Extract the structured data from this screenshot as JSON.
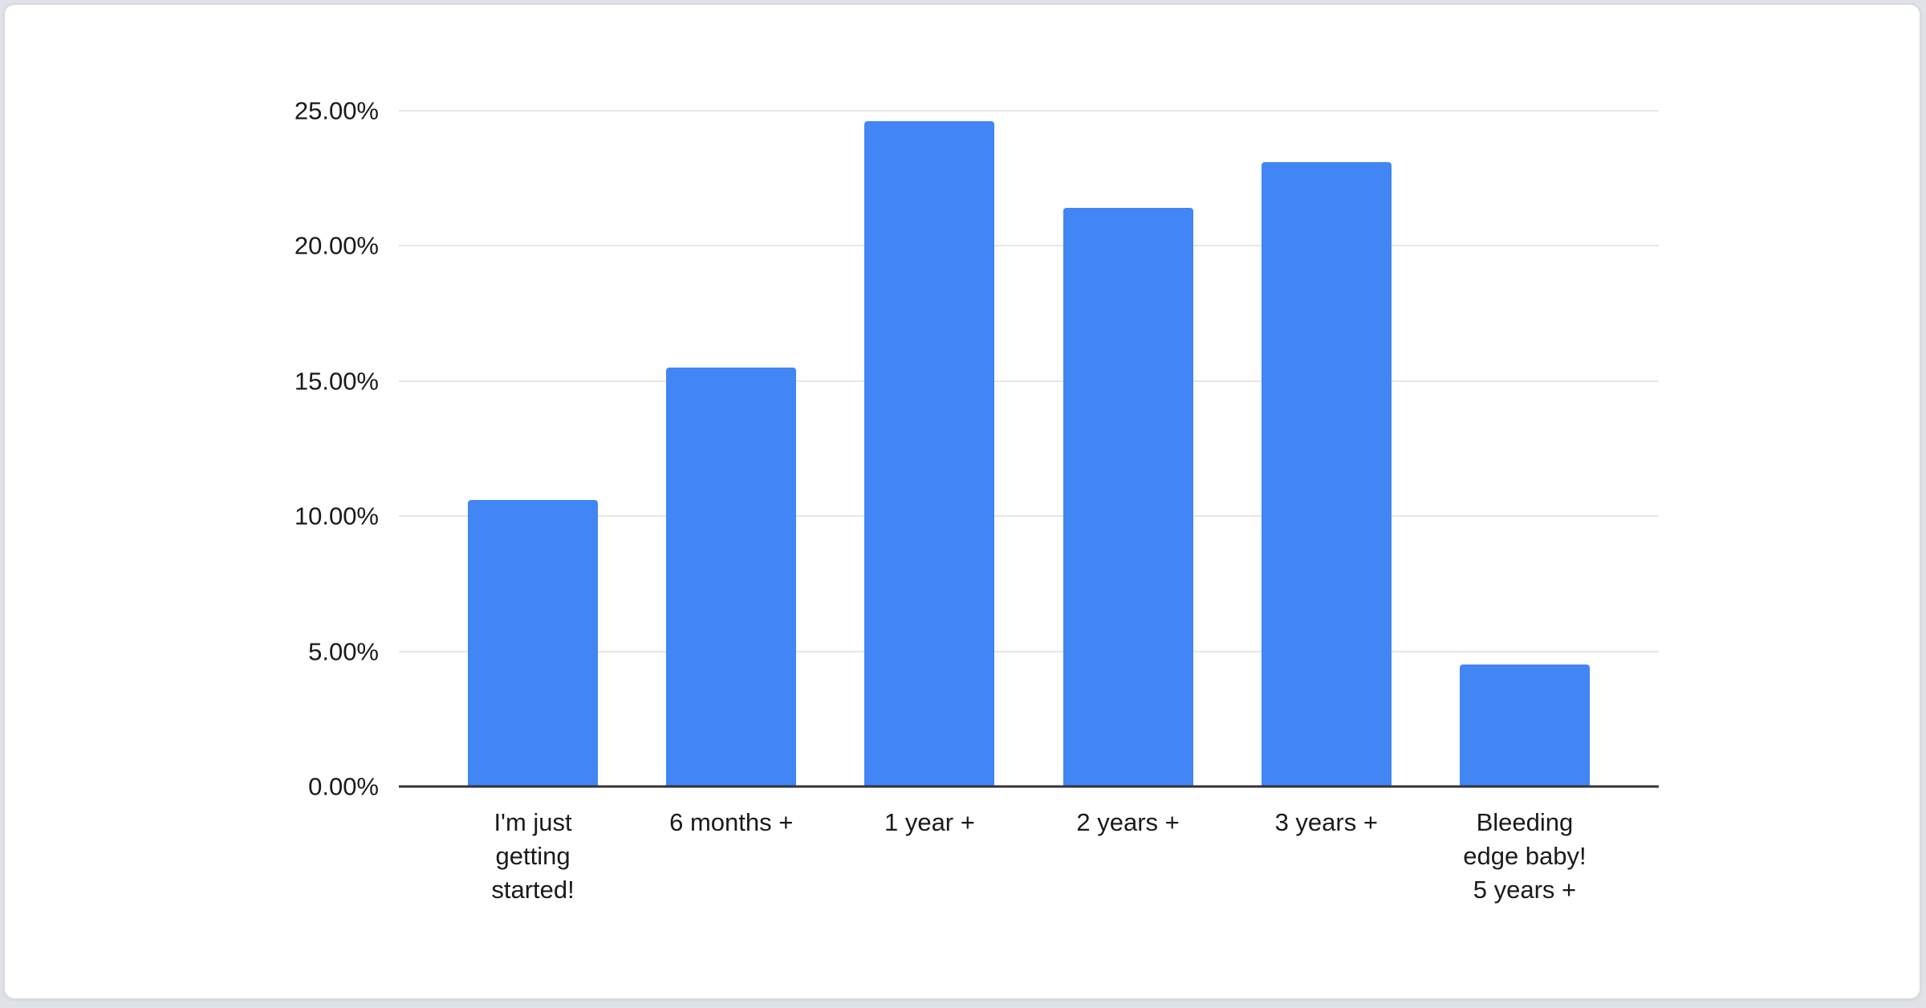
{
  "chart_data": {
    "type": "bar",
    "title": "",
    "categories": [
      "I'm just getting started!",
      "6 months +",
      "1 year +",
      "2 years +",
      "3 years +",
      "Bleeding edge baby! 5 years +"
    ],
    "category_display_lines": [
      [
        "I'm just",
        "getting",
        "started!"
      ],
      [
        "6 months +"
      ],
      [
        "1 year +"
      ],
      [
        "2 years +"
      ],
      [
        "3 years +"
      ],
      [
        "Bleeding",
        "edge baby!",
        "5 years +"
      ]
    ],
    "values": [
      10.6,
      15.5,
      24.6,
      21.4,
      23.1,
      4.5
    ],
    "unit": "%",
    "xlabel": "",
    "ylabel": "",
    "ylim": [
      0,
      25
    ],
    "yticks": [
      {
        "value": 0,
        "label": "0.00%"
      },
      {
        "value": 5,
        "label": "5.00%"
      },
      {
        "value": 10,
        "label": "10.00%"
      },
      {
        "value": 15,
        "label": "15.00%"
      },
      {
        "value": 20,
        "label": "20.00%"
      },
      {
        "value": 25,
        "label": "25.00%"
      }
    ],
    "grid": true,
    "legend": "none",
    "bar_color": "#4285f4",
    "gridline_color": "#e6e6e6",
    "axis_line_color": "#333333",
    "label_color": "#1a1a1a",
    "card_background": "#ffffff",
    "page_background": "#dfe2e6"
  }
}
